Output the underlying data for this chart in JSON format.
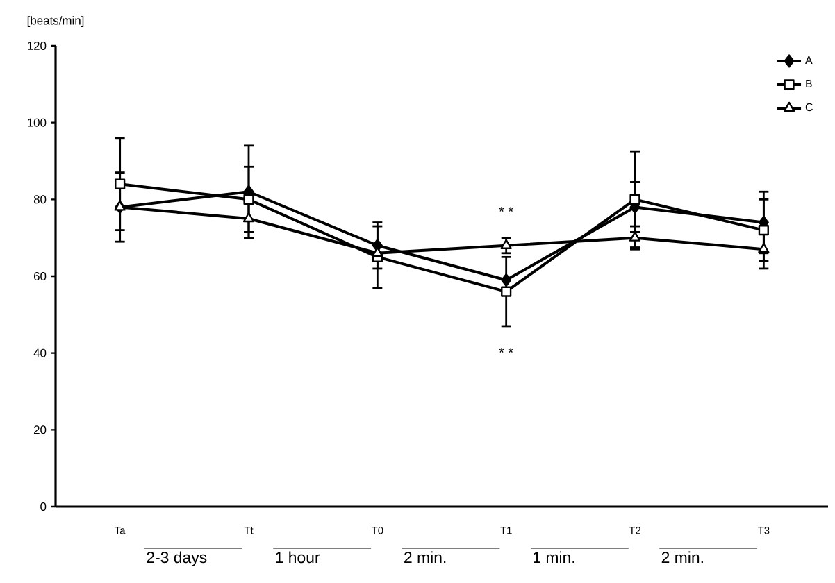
{
  "chart_data": {
    "type": "line",
    "ylabel": "[beats/min]",
    "categories": [
      "Ta",
      "Tt",
      "T0",
      "T1",
      "T2",
      "T3"
    ],
    "series": [
      {
        "name": "A",
        "color": "#000000",
        "marker": "diamond",
        "values": [
          78,
          82,
          68,
          59,
          78,
          74
        ],
        "errors": [
          9,
          12,
          6,
          null,
          6.5,
          8
        ]
      },
      {
        "name": "B",
        "color": "#000000",
        "marker": "square",
        "values": [
          84,
          80,
          65,
          56,
          80,
          72
        ],
        "errors": [
          12,
          8.5,
          8,
          9,
          12.5,
          8
        ]
      },
      {
        "name": "C",
        "color": "#000000",
        "marker": "triangle",
        "values": [
          78,
          75,
          66,
          68,
          70,
          67
        ],
        "errors": [
          null,
          5,
          null,
          2,
          3,
          5
        ]
      }
    ],
    "ylim": [
      0,
      120
    ],
    "yticks": [
      0,
      20,
      40,
      60,
      80,
      100,
      120
    ],
    "legend": "top right",
    "grid": false,
    "line_style": "solid",
    "annotations": [
      "2-3 days",
      "1 hour",
      "2 min.",
      "1 min.",
      "2 min.",
      "* *",
      "* *"
    ]
  }
}
